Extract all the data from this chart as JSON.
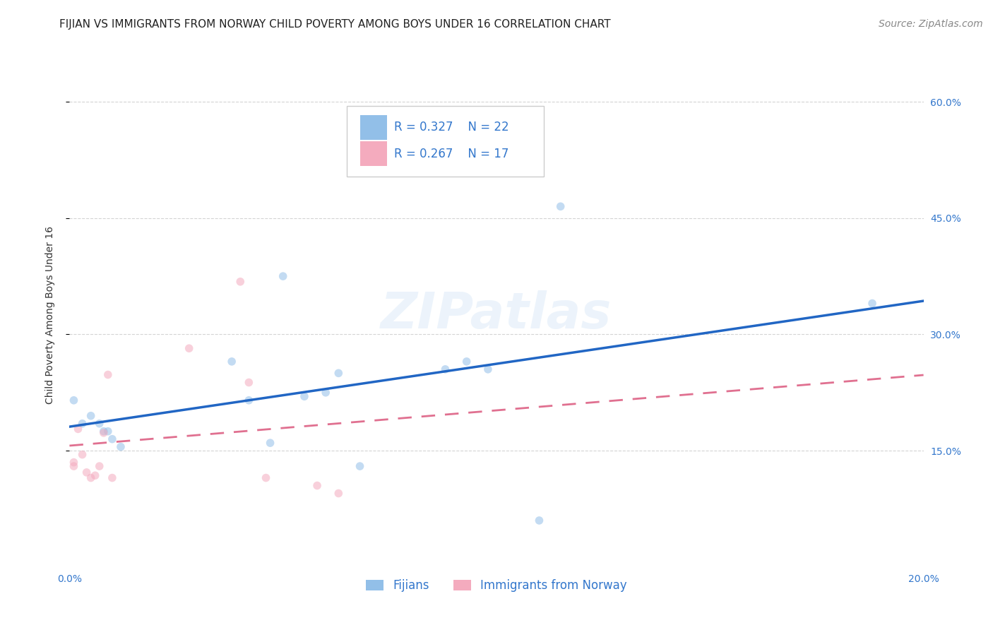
{
  "title": "FIJIAN VS IMMIGRANTS FROM NORWAY CHILD POVERTY AMONG BOYS UNDER 16 CORRELATION CHART",
  "source": "Source: ZipAtlas.com",
  "ylabel": "Child Poverty Among Boys Under 16",
  "xlim": [
    0,
    0.2
  ],
  "ylim": [
    0,
    0.65
  ],
  "xtick_vals": [
    0.0,
    0.05,
    0.1,
    0.15,
    0.2
  ],
  "xticklabels": [
    "0.0%",
    "",
    "",
    "",
    "20.0%"
  ],
  "ytick_vals": [
    0.15,
    0.3,
    0.45,
    0.6
  ],
  "yticklabels": [
    "15.0%",
    "30.0%",
    "45.0%",
    "60.0%"
  ],
  "watermark": "ZIPatlas",
  "fijians_x": [
    0.001,
    0.003,
    0.005,
    0.007,
    0.008,
    0.009,
    0.01,
    0.012,
    0.038,
    0.042,
    0.047,
    0.05,
    0.055,
    0.06,
    0.063,
    0.068,
    0.088,
    0.093,
    0.098,
    0.11,
    0.115,
    0.188
  ],
  "fijians_y": [
    0.215,
    0.185,
    0.195,
    0.185,
    0.175,
    0.175,
    0.165,
    0.155,
    0.265,
    0.215,
    0.16,
    0.375,
    0.22,
    0.225,
    0.25,
    0.13,
    0.255,
    0.265,
    0.255,
    0.06,
    0.465,
    0.34
  ],
  "norway_x": [
    0.001,
    0.001,
    0.002,
    0.003,
    0.004,
    0.005,
    0.006,
    0.007,
    0.008,
    0.009,
    0.01,
    0.028,
    0.04,
    0.042,
    0.046,
    0.058,
    0.063
  ],
  "norway_y": [
    0.13,
    0.135,
    0.178,
    0.145,
    0.122,
    0.115,
    0.118,
    0.13,
    0.173,
    0.248,
    0.115,
    0.282,
    0.368,
    0.238,
    0.115,
    0.105,
    0.095
  ],
  "fijians_color": "#92bfe8",
  "norway_color": "#f4abbe",
  "fijians_line_color": "#2166c4",
  "norway_line_color": "#e07090",
  "background_color": "#ffffff",
  "grid_color": "#d0d0d0",
  "legend_R_fijians": "R = 0.327",
  "legend_N_fijians": "N = 22",
  "legend_R_norway": "R = 0.267",
  "legend_N_norway": "N = 17",
  "legend_label_fijians": "Fijians",
  "legend_label_norway": "Immigrants from Norway",
  "title_fontsize": 11,
  "axis_label_fontsize": 10,
  "tick_fontsize": 10,
  "legend_fontsize": 12,
  "source_fontsize": 10,
  "marker_size": 70,
  "marker_alpha": 0.55,
  "ytick_color": "#3377cc",
  "xtick_color": "#3377cc"
}
